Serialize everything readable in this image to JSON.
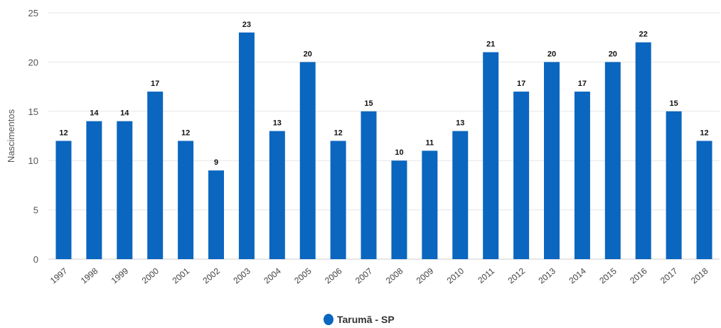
{
  "chart_data": {
    "type": "bar",
    "categories": [
      "1997",
      "1998",
      "1999",
      "2000",
      "2001",
      "2002",
      "2003",
      "2004",
      "2005",
      "2006",
      "2007",
      "2008",
      "2009",
      "2010",
      "2011",
      "2012",
      "2013",
      "2014",
      "2015",
      "2016",
      "2017",
      "2018"
    ],
    "series": [
      {
        "name": "Tarumã - SP",
        "values": [
          12,
          14,
          14,
          17,
          12,
          9,
          23,
          13,
          20,
          12,
          15,
          10,
          11,
          13,
          21,
          17,
          20,
          17,
          20,
          22,
          15,
          12
        ]
      }
    ],
    "ylabel": "Nascimentos",
    "ylim": [
      0,
      25
    ],
    "yticks": [
      0,
      5,
      10,
      15,
      20,
      25
    ],
    "grid": true,
    "legend_position": "bottom-center",
    "colors": {
      "bar": "#0a66bf",
      "grid": "#e6e6e6",
      "axis": "#cccccc"
    }
  }
}
